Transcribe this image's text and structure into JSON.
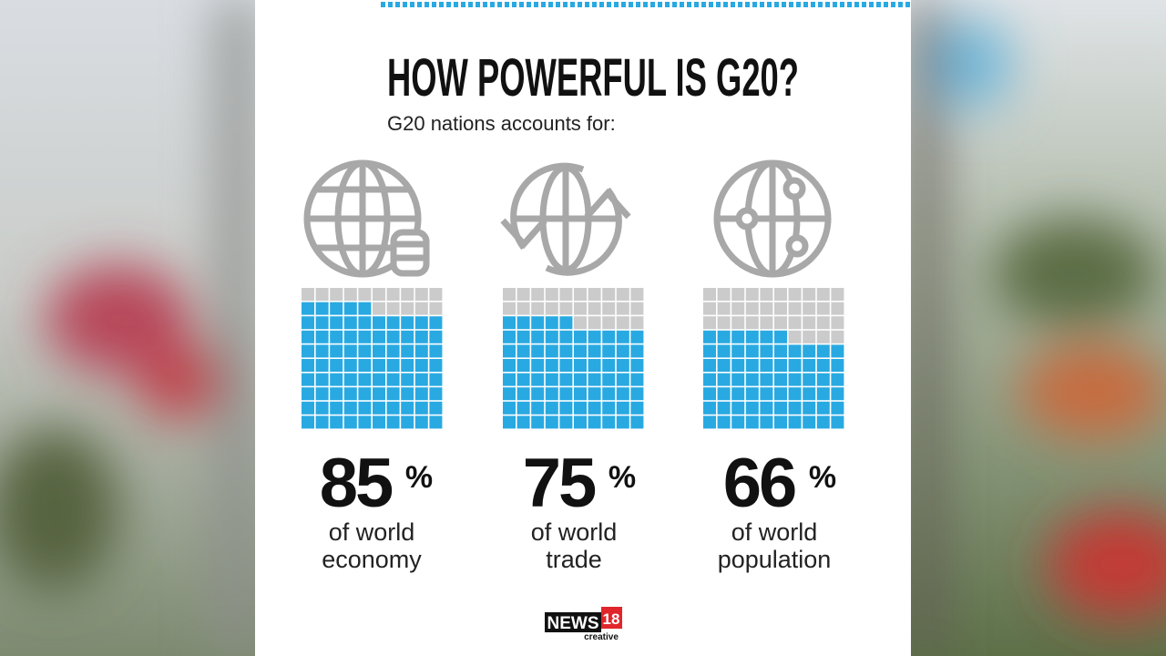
{
  "title": "HOW POWERFUL IS G20?",
  "subtitle": "G20 nations accounts for:",
  "chart_data": [
    {
      "type": "waffle",
      "value": 85,
      "unit": "%",
      "label_lines": [
        "of world",
        "economy"
      ],
      "color": "#29a9e1",
      "empty_color": "#cbcbcb",
      "cells": 100,
      "columns": 10
    },
    {
      "type": "waffle",
      "value": 75,
      "unit": "%",
      "label_lines": [
        "of world",
        "trade"
      ],
      "color": "#29a9e1",
      "empty_color": "#cbcbcb",
      "cells": 100,
      "columns": 10
    },
    {
      "type": "waffle",
      "value": 66,
      "unit": "%",
      "label_lines": [
        "of world",
        "population"
      ],
      "color": "#29a9e1",
      "empty_color": "#cbcbcb",
      "cells": 100,
      "columns": 10
    }
  ],
  "logo": {
    "brand": "NEWS",
    "number": "18",
    "sub": "creative"
  }
}
